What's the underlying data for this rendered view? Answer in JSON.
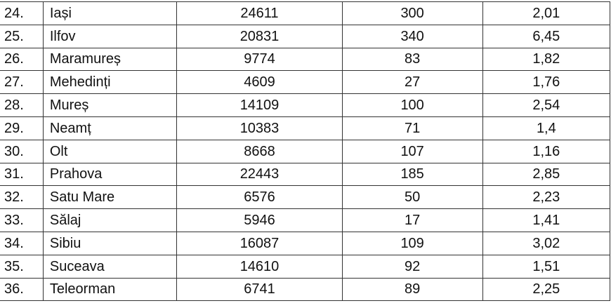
{
  "table": {
    "rows": [
      {
        "no": "24.",
        "county": "Iași",
        "v1": "24611",
        "v2": "300",
        "v3": "2,01"
      },
      {
        "no": "25.",
        "county": "Ilfov",
        "v1": "20831",
        "v2": "340",
        "v3": "6,45"
      },
      {
        "no": "26.",
        "county": "Maramureș",
        "v1": "9774",
        "v2": "83",
        "v3": "1,82"
      },
      {
        "no": "27.",
        "county": "Mehedinți",
        "v1": "4609",
        "v2": "27",
        "v3": "1,76"
      },
      {
        "no": "28.",
        "county": "Mureș",
        "v1": "14109",
        "v2": "100",
        "v3": "2,54"
      },
      {
        "no": "29.",
        "county": "Neamț",
        "v1": "10383",
        "v2": "71",
        "v3": "1,4"
      },
      {
        "no": "30.",
        "county": "Olt",
        "v1": "8668",
        "v2": "107",
        "v3": "1,16"
      },
      {
        "no": "31.",
        "county": "Prahova",
        "v1": "22443",
        "v2": "185",
        "v3": "2,85"
      },
      {
        "no": "32.",
        "county": "Satu Mare",
        "v1": "6576",
        "v2": "50",
        "v3": "2,23"
      },
      {
        "no": "33.",
        "county": "Sălaj",
        "v1": "5946",
        "v2": "17",
        "v3": "1,41"
      },
      {
        "no": "34.",
        "county": "Sibiu",
        "v1": "16087",
        "v2": "109",
        "v3": "3,02"
      },
      {
        "no": "35.",
        "county": "Suceava",
        "v1": "14610",
        "v2": "92",
        "v3": "1,51"
      },
      {
        "no": "36.",
        "county": "Teleorman",
        "v1": "6741",
        "v2": "89",
        "v3": "2,25"
      }
    ]
  }
}
